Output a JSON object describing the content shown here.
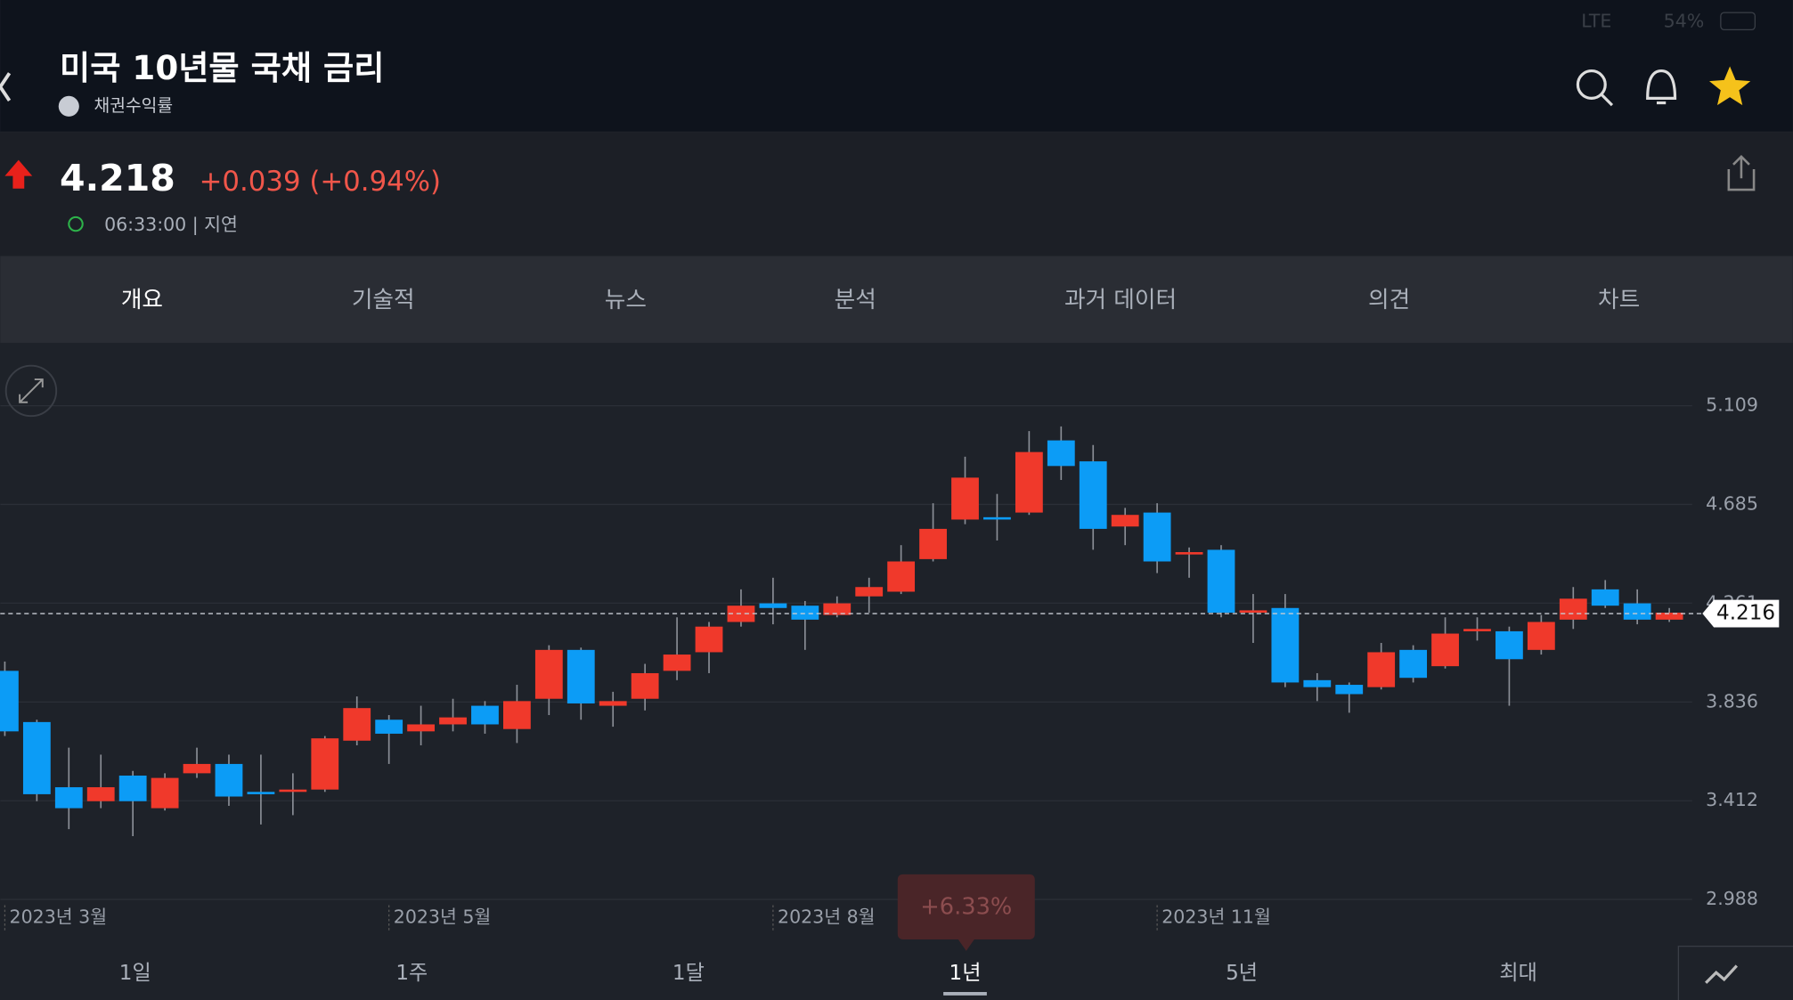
{
  "status_bar": {
    "network": "LTE",
    "battery": "54%"
  },
  "header": {
    "title": "미국 10년물 국채 금리",
    "subtitle": "채권수익률"
  },
  "quote": {
    "price": "4.218",
    "change": "+0.039 (+0.94%)",
    "time": "06:33:00 | 지연"
  },
  "tabs": [
    "개요",
    "기술적",
    "뉴스",
    "분석",
    "과거 데이터",
    "의견",
    "차트"
  ],
  "selected_tab": "개요",
  "chart_data": {
    "type": "candlestick",
    "categories": [
      "2023년 3월",
      null,
      null,
      null,
      null,
      null,
      null,
      null,
      null,
      null,
      null,
      null,
      "2023년 5월",
      null,
      null,
      null,
      null,
      null,
      null,
      null,
      null,
      null,
      null,
      null,
      "2023년 8월",
      null,
      null,
      null,
      null,
      null,
      null,
      null,
      null,
      null,
      null,
      null,
      "2023년 11월",
      null,
      null,
      null,
      null,
      null,
      null,
      null,
      null,
      null,
      null,
      null,
      null,
      null,
      null,
      null,
      null
    ],
    "open": [
      3.97,
      3.75,
      3.47,
      3.41,
      3.52,
      3.38,
      3.53,
      3.57,
      3.45,
      3.45,
      3.46,
      3.67,
      3.76,
      3.71,
      3.74,
      3.82,
      3.72,
      3.85,
      4.06,
      3.82,
      3.85,
      3.97,
      4.05,
      4.18,
      4.26,
      4.25,
      4.21,
      4.29,
      4.31,
      4.45,
      4.62,
      4.63,
      4.65,
      4.96,
      4.87,
      4.59,
      4.65,
      4.47,
      4.49,
      4.22,
      4.24,
      3.93,
      3.91,
      3.9,
      4.06,
      3.99,
      4.14,
      4.14,
      4.06,
      4.19,
      4.32,
      4.26,
      4.19
    ],
    "high": [
      4.01,
      3.76,
      3.64,
      3.61,
      3.54,
      3.53,
      3.64,
      3.61,
      3.61,
      3.53,
      3.69,
      3.86,
      3.78,
      3.82,
      3.85,
      3.84,
      3.91,
      4.08,
      4.07,
      3.88,
      4.0,
      4.2,
      4.18,
      4.32,
      4.37,
      4.27,
      4.29,
      4.37,
      4.51,
      4.69,
      4.89,
      4.73,
      5.0,
      5.02,
      4.94,
      4.67,
      4.69,
      4.5,
      4.51,
      4.3,
      4.3,
      3.96,
      3.92,
      4.09,
      4.08,
      4.2,
      4.2,
      4.16,
      4.21,
      4.33,
      4.36,
      4.32,
      4.24
    ],
    "low": [
      3.69,
      3.41,
      3.29,
      3.38,
      3.26,
      3.37,
      3.51,
      3.39,
      3.31,
      3.35,
      3.45,
      3.65,
      3.57,
      3.65,
      3.71,
      3.7,
      3.66,
      3.78,
      3.76,
      3.73,
      3.8,
      3.93,
      3.96,
      4.16,
      4.17,
      4.06,
      4.2,
      4.22,
      4.3,
      4.44,
      4.6,
      4.53,
      4.64,
      4.79,
      4.49,
      4.51,
      4.39,
      4.37,
      4.2,
      4.09,
      3.9,
      3.84,
      3.79,
      3.89,
      3.92,
      3.98,
      4.1,
      3.82,
      4.04,
      4.15,
      4.24,
      4.17,
      4.18
    ],
    "close": [
      3.71,
      3.44,
      3.38,
      3.47,
      3.41,
      3.51,
      3.57,
      3.43,
      3.44,
      3.46,
      3.68,
      3.81,
      3.7,
      3.74,
      3.77,
      3.74,
      3.84,
      4.06,
      3.83,
      3.84,
      3.96,
      4.04,
      4.16,
      4.25,
      4.24,
      4.19,
      4.26,
      4.33,
      4.44,
      4.58,
      4.8,
      4.62,
      4.91,
      4.85,
      4.58,
      4.64,
      4.44,
      4.48,
      4.22,
      4.23,
      3.92,
      3.9,
      3.87,
      4.05,
      3.94,
      4.13,
      4.15,
      4.02,
      4.18,
      4.28,
      4.25,
      4.19,
      4.22
    ],
    "up_color": "#f0392b",
    "down_color": "#0c9cf6",
    "ylim": [
      2.988,
      5.109
    ],
    "yticks": [
      2.988,
      3.412,
      3.836,
      4.261,
      4.685,
      5.109
    ],
    "grid": true,
    "last_value": 4.216,
    "tooltip": "+6.33%"
  },
  "ranges": [
    "1일",
    "1주",
    "1달",
    "1년",
    "5년",
    "최대"
  ],
  "selected_range": "1년"
}
